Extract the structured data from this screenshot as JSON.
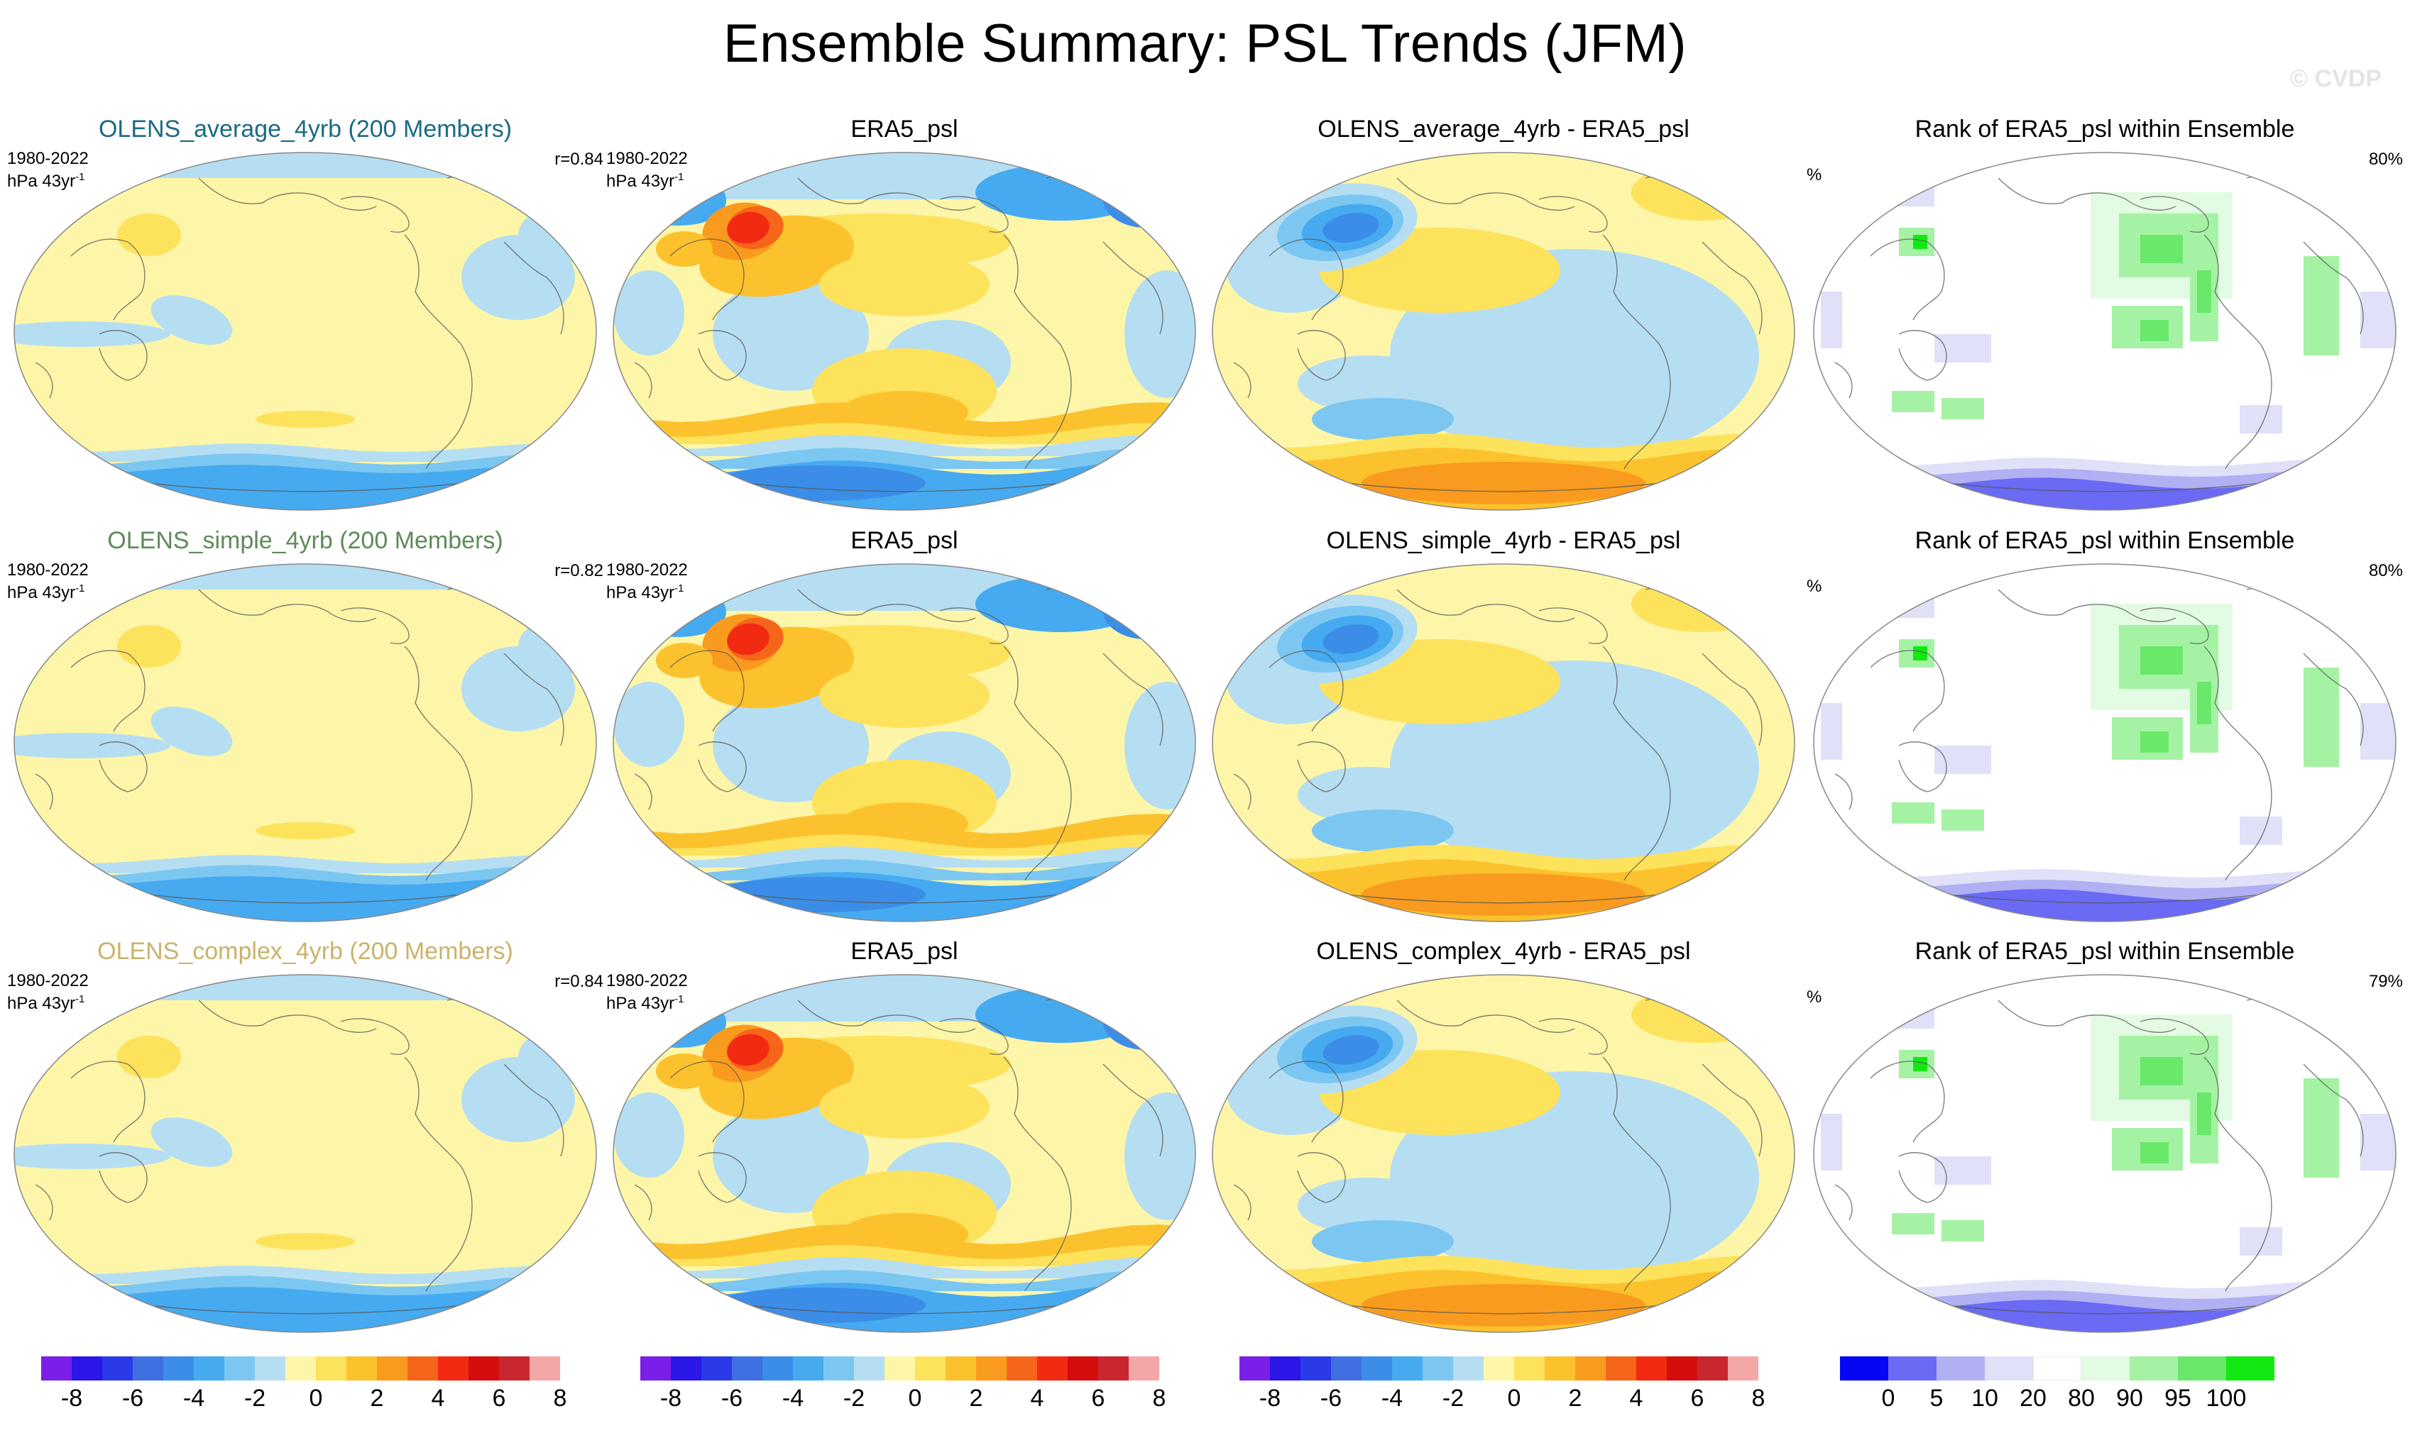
{
  "title": "Ensemble Summary: PSL Trends (JFM)",
  "watermark": "© CVDP",
  "colors": {
    "title_average": "#1a6a85",
    "title_simple": "#5f8a5a",
    "title_complex": "#c9b36a",
    "psl_fill": [
      "#7a1ee8",
      "#2a17e8",
      "#2a3ae8",
      "#3f6fe0",
      "#3c8de8",
      "#46aaf0",
      "#7cc7f2",
      "#b6def2",
      "#fdf6a8",
      "#fde25c",
      "#fcc22d",
      "#f99b1e",
      "#f6661a",
      "#f32a12",
      "#d40d0d",
      "#c8272e",
      "#f5a7a7"
    ],
    "rank_fill": [
      "#0606f5",
      "#6a6af5",
      "#b0b0f2",
      "#e0e0f8",
      "#ffffff",
      "#e2fbe2",
      "#a5f2a5",
      "#6ae86a",
      "#12e812"
    ]
  },
  "rows": [
    {
      "model": {
        "title": "OLENS_average_4yrb (200 Members)",
        "period": "1980-2022",
        "units": "hPa 43yr",
        "units_sup": "-1",
        "corr": "r=0.84"
      },
      "obs": {
        "title": "ERA5_psl",
        "period": "1980-2022",
        "units": "hPa 43yr",
        "units_sup": "-1"
      },
      "diff": {
        "title": "OLENS_average_4yrb - ERA5_psl"
      },
      "rank": {
        "title": "Rank of ERA5_psl within Ensemble",
        "units": "%",
        "pct": "80%"
      }
    },
    {
      "model": {
        "title": "OLENS_simple_4yrb (200 Members)",
        "period": "1980-2022",
        "units": "hPa 43yr",
        "units_sup": "-1",
        "corr": "r=0.82"
      },
      "obs": {
        "title": "ERA5_psl",
        "period": "1980-2022",
        "units": "hPa 43yr",
        "units_sup": "-1"
      },
      "diff": {
        "title": "OLENS_simple_4yrb - ERA5_psl"
      },
      "rank": {
        "title": "Rank of ERA5_psl within Ensemble",
        "units": "%",
        "pct": "80%"
      }
    },
    {
      "model": {
        "title": "OLENS_complex_4yrb (200 Members)",
        "period": "1980-2022",
        "units": "hPa 43yr",
        "units_sup": "-1",
        "corr": "r=0.84"
      },
      "obs": {
        "title": "ERA5_psl",
        "period": "1980-2022",
        "units": "hPa 43yr",
        "units_sup": "-1"
      },
      "diff": {
        "title": "OLENS_complex_4yrb - ERA5_psl"
      },
      "rank": {
        "title": "Rank of ERA5_psl within Ensemble",
        "units": "%",
        "pct": "79%"
      }
    }
  ],
  "colorbars": {
    "psl_labels": [
      "-8",
      "-6",
      "-4",
      "-2",
      "0",
      "2",
      "4",
      "6",
      "8"
    ],
    "rank_labels": [
      "0",
      "5",
      "10",
      "20",
      "80",
      "90",
      "95",
      "100"
    ]
  }
}
